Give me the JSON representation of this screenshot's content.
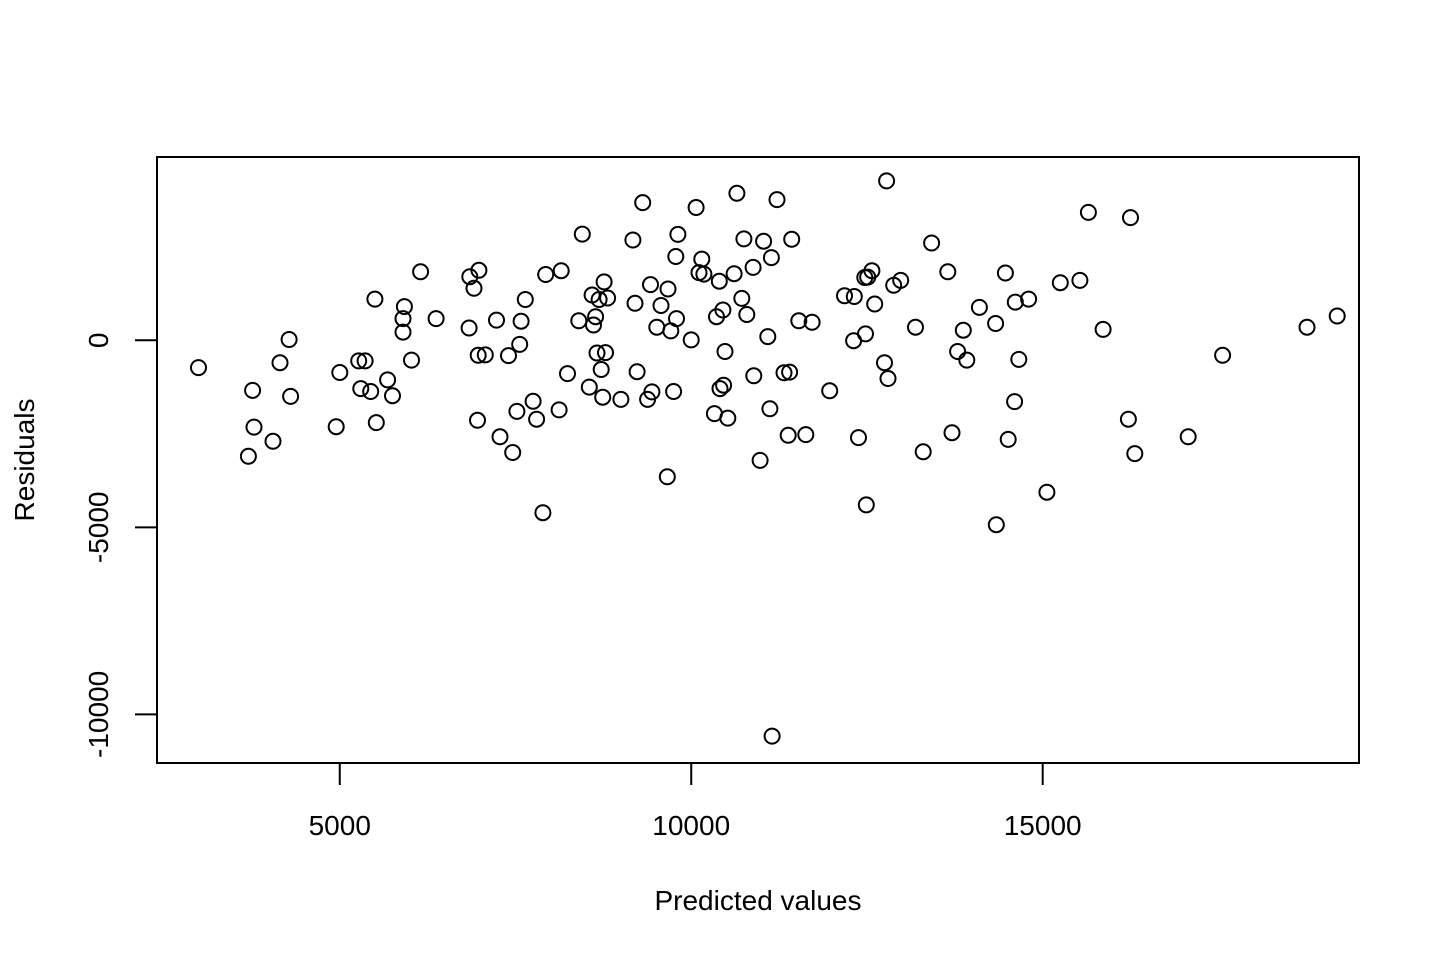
{
  "chart_data": {
    "type": "scatter",
    "xlabel": "Predicted values",
    "ylabel": "Residuals",
    "xlim": [
      2400,
      19500
    ],
    "ylim": [
      -11300,
      4900
    ],
    "x_ticks": [
      5000,
      10000,
      15000
    ],
    "y_ticks": [
      0,
      -5000,
      -10000
    ],
    "x_tick_labels": [
      "5000",
      "10000",
      "15000"
    ],
    "y_tick_labels": [
      "0",
      "-5000",
      "-10000"
    ],
    "grid": false,
    "legend": "none",
    "point_style": "open-circle",
    "color": "#000000",
    "points": [
      [
        2990,
        -730
      ],
      [
        3700,
        -3100
      ],
      [
        3760,
        -1340
      ],
      [
        3780,
        -2320
      ],
      [
        4050,
        -2700
      ],
      [
        4150,
        -600
      ],
      [
        4280,
        20
      ],
      [
        4300,
        -1500
      ],
      [
        4950,
        -2310
      ],
      [
        5000,
        -860
      ],
      [
        5270,
        -550
      ],
      [
        5300,
        -1290
      ],
      [
        5360,
        -550
      ],
      [
        5440,
        -1370
      ],
      [
        5500,
        1100
      ],
      [
        5520,
        -2200
      ],
      [
        5680,
        -1060
      ],
      [
        5750,
        -1480
      ],
      [
        5900,
        580
      ],
      [
        5900,
        220
      ],
      [
        5920,
        900
      ],
      [
        6020,
        -530
      ],
      [
        6150,
        1830
      ],
      [
        6370,
        580
      ],
      [
        6840,
        330
      ],
      [
        6850,
        1700
      ],
      [
        6910,
        1390
      ],
      [
        6960,
        -2140
      ],
      [
        6970,
        -400
      ],
      [
        6980,
        1870
      ],
      [
        7070,
        -390
      ],
      [
        7230,
        540
      ],
      [
        7280,
        -2580
      ],
      [
        7400,
        -410
      ],
      [
        7460,
        -3000
      ],
      [
        7520,
        -1900
      ],
      [
        7560,
        -110
      ],
      [
        7580,
        510
      ],
      [
        7640,
        1090
      ],
      [
        7750,
        -1630
      ],
      [
        7800,
        -2110
      ],
      [
        7890,
        -4610
      ],
      [
        7930,
        1760
      ],
      [
        8120,
        -1860
      ],
      [
        8150,
        1860
      ],
      [
        8240,
        -890
      ],
      [
        8400,
        520
      ],
      [
        8450,
        2840
      ],
      [
        8550,
        -1250
      ],
      [
        8590,
        1210
      ],
      [
        8610,
        410
      ],
      [
        8640,
        630
      ],
      [
        8660,
        -340
      ],
      [
        8690,
        1090
      ],
      [
        8720,
        -780
      ],
      [
        8740,
        -1520
      ],
      [
        8760,
        1560
      ],
      [
        8780,
        -330
      ],
      [
        8810,
        1130
      ],
      [
        9000,
        -1580
      ],
      [
        9170,
        2680
      ],
      [
        9200,
        990
      ],
      [
        9230,
        -840
      ],
      [
        9310,
        3680
      ],
      [
        9380,
        -1580
      ],
      [
        9420,
        1490
      ],
      [
        9440,
        -1380
      ],
      [
        9510,
        350
      ],
      [
        9570,
        930
      ],
      [
        9660,
        -3650
      ],
      [
        9670,
        1370
      ],
      [
        9710,
        250
      ],
      [
        9750,
        -1370
      ],
      [
        9780,
        2240
      ],
      [
        9790,
        580
      ],
      [
        9810,
        2830
      ],
      [
        10000,
        10
      ],
      [
        10070,
        3550
      ],
      [
        10110,
        1810
      ],
      [
        10150,
        2170
      ],
      [
        10180,
        1770
      ],
      [
        10330,
        -1960
      ],
      [
        10360,
        630
      ],
      [
        10400,
        1580
      ],
      [
        10410,
        -1290
      ],
      [
        10450,
        810
      ],
      [
        10460,
        -1200
      ],
      [
        10480,
        -300
      ],
      [
        10520,
        -2080
      ],
      [
        10610,
        1780
      ],
      [
        10650,
        3930
      ],
      [
        10720,
        1120
      ],
      [
        10750,
        2710
      ],
      [
        10790,
        690
      ],
      [
        10880,
        1950
      ],
      [
        10890,
        -950
      ],
      [
        10980,
        -3210
      ],
      [
        11030,
        2650
      ],
      [
        11090,
        100
      ],
      [
        11120,
        -1830
      ],
      [
        11140,
        2210
      ],
      [
        11150,
        -10580
      ],
      [
        11220,
        3760
      ],
      [
        11320,
        -870
      ],
      [
        11380,
        -2540
      ],
      [
        11400,
        -850
      ],
      [
        11430,
        2700
      ],
      [
        11530,
        520
      ],
      [
        11630,
        -2520
      ],
      [
        11720,
        480
      ],
      [
        11970,
        -1350
      ],
      [
        12180,
        1190
      ],
      [
        12310,
        -10
      ],
      [
        12320,
        1170
      ],
      [
        12380,
        -2600
      ],
      [
        12470,
        1680
      ],
      [
        12480,
        170
      ],
      [
        12490,
        -4400
      ],
      [
        12510,
        1690
      ],
      [
        12570,
        1860
      ],
      [
        12610,
        970
      ],
      [
        12750,
        -600
      ],
      [
        12780,
        4260
      ],
      [
        12800,
        -1020
      ],
      [
        12880,
        1470
      ],
      [
        12980,
        1600
      ],
      [
        13190,
        350
      ],
      [
        13300,
        -2980
      ],
      [
        13420,
        2600
      ],
      [
        13650,
        1830
      ],
      [
        13710,
        -2470
      ],
      [
        13790,
        -300
      ],
      [
        13870,
        270
      ],
      [
        13920,
        -530
      ],
      [
        14100,
        880
      ],
      [
        14330,
        450
      ],
      [
        14340,
        -4930
      ],
      [
        14470,
        1800
      ],
      [
        14510,
        -2650
      ],
      [
        14600,
        -1640
      ],
      [
        14610,
        1020
      ],
      [
        14660,
        -510
      ],
      [
        14800,
        1100
      ],
      [
        15060,
        -4060
      ],
      [
        15250,
        1540
      ],
      [
        15530,
        1600
      ],
      [
        15650,
        3420
      ],
      [
        15860,
        290
      ],
      [
        16220,
        -2110
      ],
      [
        16250,
        3280
      ],
      [
        16310,
        -3030
      ],
      [
        17070,
        -2580
      ],
      [
        17560,
        -400
      ],
      [
        18760,
        350
      ],
      [
        19190,
        650
      ]
    ]
  }
}
